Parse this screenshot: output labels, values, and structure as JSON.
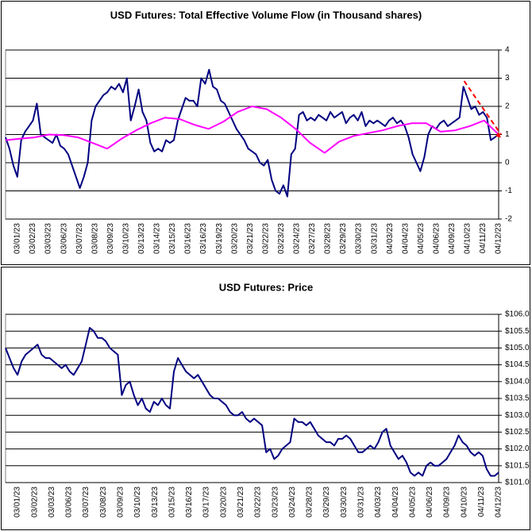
{
  "chart_data": [
    {
      "type": "line",
      "title": "USD Futures: Total Effective Volume Flow (in Thousand shares)",
      "x_tick_labels": [
        "03/01/23",
        "03/02/23",
        "03/03/23",
        "03/06/23",
        "03/07/23",
        "03/08/23",
        "03/09/23",
        "03/10/23",
        "03/13/23",
        "03/14/23",
        "03/15/23",
        "03/16/23",
        "03/16/23",
        "03/19/23",
        "03/20/23",
        "03/21/23",
        "03/22/23",
        "03/23/23",
        "03/24/23",
        "03/27/23",
        "03/28/23",
        "03/29/23",
        "03/30/23",
        "03/31/23",
        "04/03/23",
        "04/04/23",
        "04/05/23",
        "04/06/23",
        "04/09/23",
        "04/10/23",
        "04/11/23",
        "04/12/23"
      ],
      "series": [
        {
          "color": "#000080",
          "values": [
            0.9,
            0.5,
            -0.1,
            -0.5,
            0.8,
            1.1,
            1.3,
            1.5,
            2.1,
            1.0,
            0.9,
            0.8,
            0.7,
            1.0,
            0.6,
            0.5,
            0.3,
            -0.1,
            -0.5,
            -0.9,
            -0.5,
            0.0,
            1.5,
            2.0,
            2.2,
            2.4,
            2.5,
            2.7,
            2.6,
            2.8,
            2.5,
            3.0,
            1.5,
            2.0,
            2.6,
            1.8,
            1.5,
            0.7,
            0.4,
            0.5,
            0.4,
            0.8,
            0.7,
            0.8,
            1.5,
            1.9,
            2.3,
            2.2,
            2.2,
            2.0,
            3.0,
            2.8,
            3.3,
            2.7,
            2.6,
            2.2,
            2.1,
            1.8,
            1.5,
            1.2,
            1.0,
            0.8,
            0.5,
            0.4,
            0.3,
            0.0,
            -0.1,
            0.1,
            -0.6,
            -1.0,
            -1.1,
            -0.8,
            -1.2,
            0.3,
            0.5,
            1.7,
            1.8,
            1.5,
            1.6,
            1.5,
            1.7,
            1.6,
            1.5,
            1.8,
            1.6,
            1.7,
            1.8,
            1.4,
            1.6,
            1.7,
            1.5,
            1.8,
            1.3,
            1.5,
            1.4,
            1.5,
            1.4,
            1.3,
            1.5,
            1.6,
            1.4,
            1.5,
            1.3,
            0.9,
            0.3,
            0.0,
            -0.3,
            0.2,
            1.0,
            1.3,
            1.2,
            1.4,
            1.5,
            1.3,
            1.4,
            1.5,
            1.6,
            2.7,
            2.3,
            1.9,
            2.0,
            1.7,
            1.8,
            1.6,
            0.8,
            0.9,
            1.0
          ]
        },
        {
          "color": "#ff00ff",
          "values": [
            0.8,
            0.85,
            0.9,
            1.0,
            0.98,
            0.9,
            0.7,
            0.5,
            0.85,
            1.15,
            1.4,
            1.6,
            1.55,
            1.35,
            1.2,
            1.45,
            1.8,
            2.0,
            1.9,
            1.6,
            1.2,
            0.7,
            0.35,
            0.75,
            0.95,
            1.05,
            1.15,
            1.3,
            1.4,
            1.4,
            1.1,
            1.15,
            1.3,
            1.5,
            1.0
          ]
        }
      ],
      "trend_line": {
        "color": "#ff0000",
        "values": [
          2.9,
          1.0
        ]
      },
      "ylim": [
        -2,
        4
      ],
      "yticks": [
        -2,
        -1,
        0,
        1,
        2,
        3,
        4
      ],
      "grid": true,
      "y_axis_side": "right"
    },
    {
      "type": "line",
      "title": "USD Futures: Price",
      "x_tick_labels": [
        "03/01/23",
        "03/02/23",
        "03/03/23",
        "03/06/23",
        "03/07/23",
        "03/08/23",
        "03/09/23",
        "03/10/23",
        "03/13/23",
        "03/15/23",
        "03/16/23",
        "03/17/23",
        "03/20/23",
        "03/21/23",
        "03/22/23",
        "03/23/23",
        "03/24/23",
        "03/28/23",
        "03/29/23",
        "03/30/23",
        "03/31/23",
        "04/03/23",
        "04/04/23",
        "04/05/23",
        "04/06/23",
        "04/09/23",
        "04/10/23",
        "04/11/23",
        "04/12/23"
      ],
      "series": [
        {
          "color": "#000080",
          "values": [
            105.0,
            104.7,
            104.4,
            104.2,
            104.6,
            104.8,
            104.9,
            105.0,
            105.1,
            104.8,
            104.7,
            104.7,
            104.6,
            104.5,
            104.4,
            104.5,
            104.3,
            104.2,
            104.4,
            104.6,
            105.1,
            105.6,
            105.5,
            105.3,
            105.3,
            105.2,
            105.0,
            104.9,
            104.8,
            103.6,
            103.9,
            104.0,
            103.6,
            103.3,
            103.5,
            103.2,
            103.1,
            103.4,
            103.3,
            103.5,
            103.3,
            103.2,
            104.3,
            104.7,
            104.5,
            104.3,
            104.2,
            104.1,
            104.2,
            104.0,
            103.8,
            103.6,
            103.5,
            103.5,
            103.4,
            103.3,
            103.1,
            103.0,
            103.0,
            103.1,
            102.9,
            102.8,
            102.9,
            102.8,
            102.7,
            101.9,
            102.0,
            101.7,
            101.8,
            102.0,
            102.1,
            102.2,
            102.9,
            102.8,
            102.8,
            102.7,
            102.8,
            102.6,
            102.4,
            102.3,
            102.2,
            102.2,
            102.1,
            102.3,
            102.3,
            102.4,
            102.3,
            102.1,
            101.9,
            101.9,
            102.0,
            102.1,
            102.0,
            102.2,
            102.5,
            102.6,
            102.1,
            101.9,
            101.7,
            101.8,
            101.6,
            101.3,
            101.2,
            101.3,
            101.2,
            101.5,
            101.6,
            101.5,
            101.5,
            101.6,
            101.7,
            101.9,
            102.1,
            102.4,
            102.2,
            102.1,
            101.9,
            101.8,
            101.9,
            101.8,
            101.4,
            101.2,
            101.2,
            101.3
          ]
        }
      ],
      "ylim": [
        101,
        106
      ],
      "yticks": [
        {
          "value": 101,
          "label": "$101.0"
        },
        {
          "value": 101.5,
          "label": "$101.5"
        },
        {
          "value": 102,
          "label": "$102.0"
        },
        {
          "value": 102.5,
          "label": "$102.5"
        },
        {
          "value": 103,
          "label": "$103.0"
        },
        {
          "value": 103.5,
          "label": "$103.5"
        },
        {
          "value": 104,
          "label": "$104.0"
        },
        {
          "value": 104.5,
          "label": "$104.5"
        },
        {
          "value": 105,
          "label": "$105.0"
        },
        {
          "value": 105.5,
          "label": "$105.5"
        },
        {
          "value": 106,
          "label": "$106.0"
        }
      ],
      "grid": true,
      "y_axis_side": "right"
    }
  ]
}
